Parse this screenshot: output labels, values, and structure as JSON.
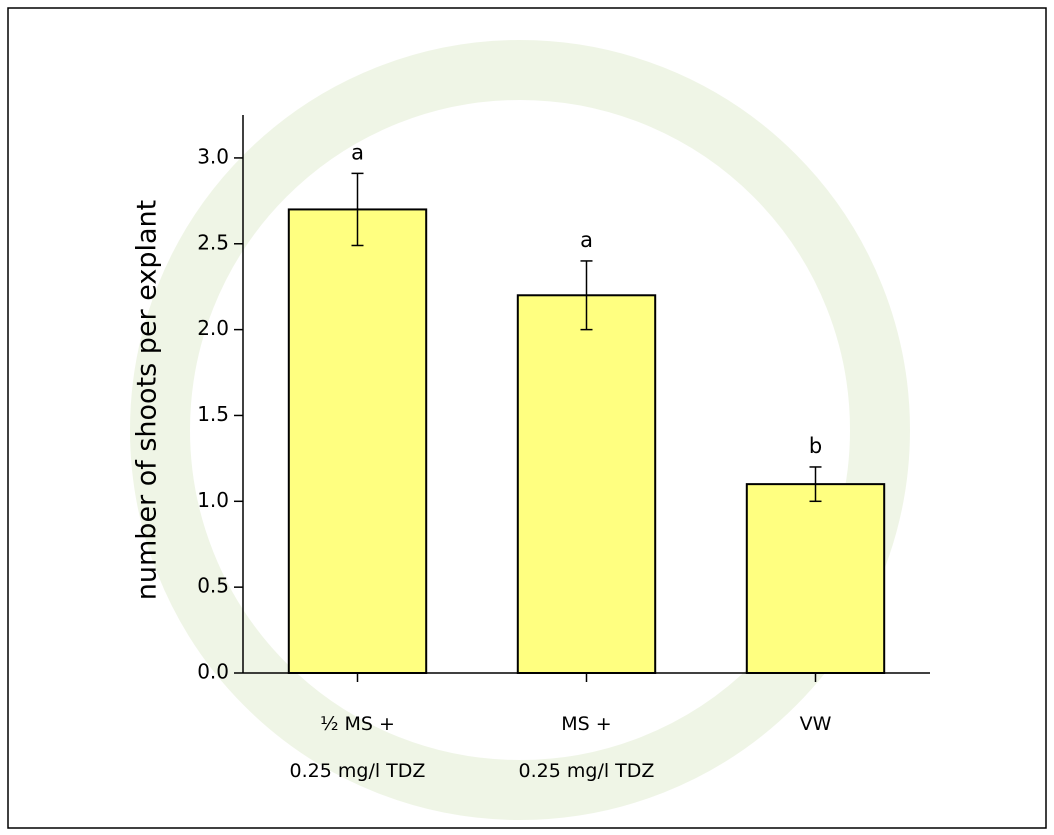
{
  "chart_data": {
    "type": "bar",
    "ylabel": "number of shoots per explant",
    "categories": [
      "½ MS +\n0.25 mg/l TDZ",
      "MS +\n0.25 mg/l TDZ",
      "VW"
    ],
    "values": [
      2.7,
      2.2,
      1.1
    ],
    "errors": [
      0.21,
      0.2,
      0.1
    ],
    "annotations": [
      "a",
      "a",
      "b"
    ],
    "color": "#ffff80",
    "ylim": [
      0,
      3.25
    ],
    "yticks": [
      {
        "value": 0,
        "label": "0.0"
      },
      0.5,
      {
        "value": 1,
        "label": "1.0"
      },
      1.5,
      {
        "value": 2,
        "label": "2.0"
      },
      2.5,
      {
        "value": 3,
        "label": "3.0"
      }
    ]
  }
}
